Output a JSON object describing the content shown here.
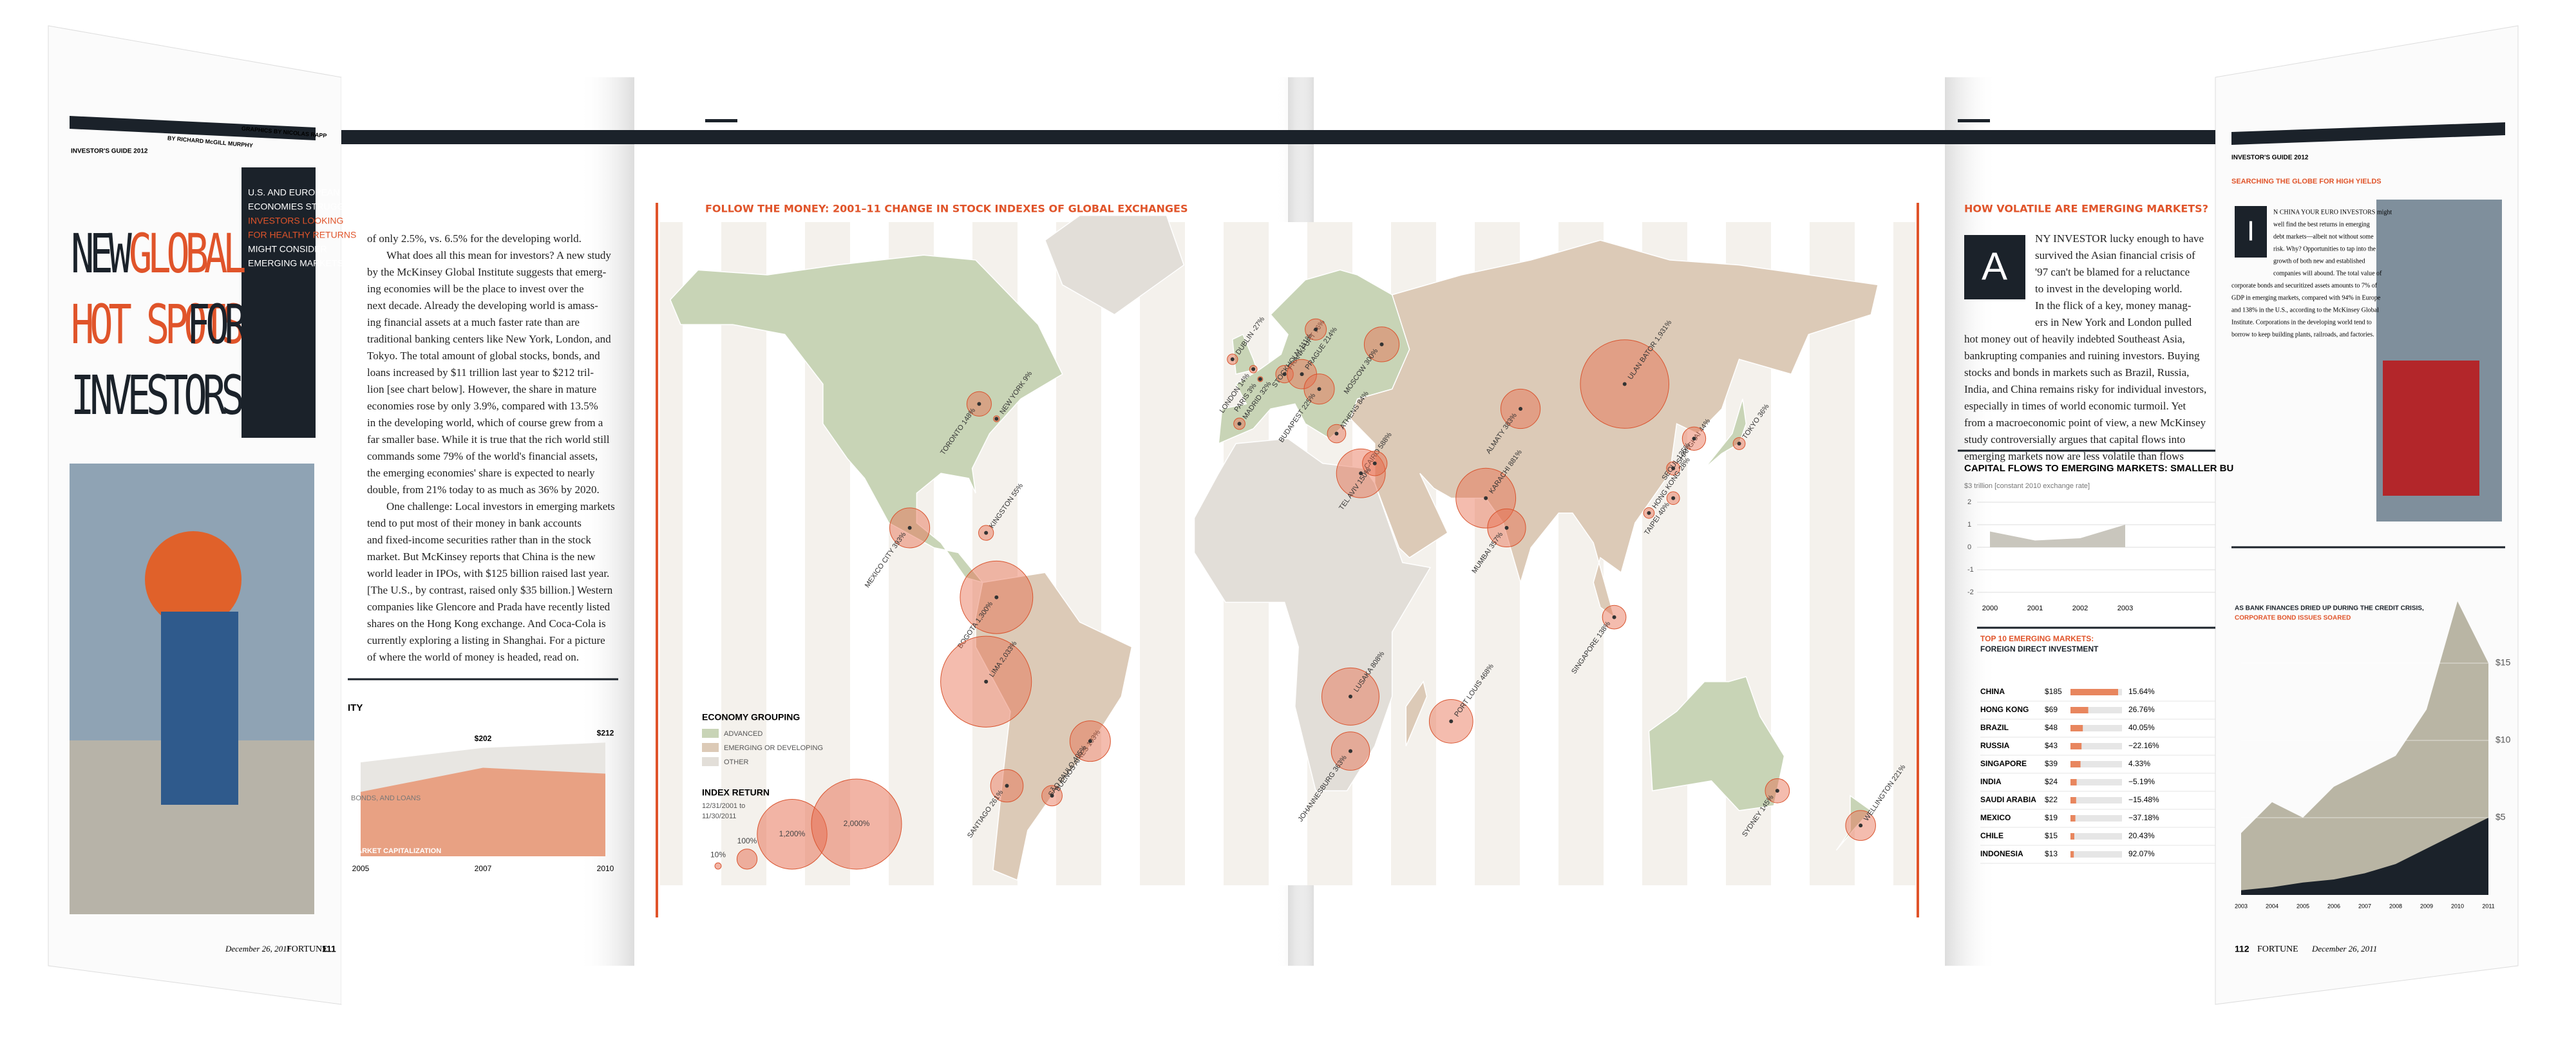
{
  "left_cover": {
    "section": "INVESTOR'S GUIDE 2012",
    "byline": "BY RICHARD McGILL MURPHY",
    "graphics": "GRAPHICS BY NICOLAS RAPP",
    "title_parts": [
      "NEW",
      "GLOBAL",
      "HOT SPOTS",
      "FOR",
      "INVESTORS"
    ],
    "deck": [
      "U.S. AND EUROPEAN",
      "ECONOMIES STRUGGLE.",
      "INVESTORS LOOKING",
      "FOR HEALTHY RETURNS",
      "MIGHT CONSIDER",
      "EMERGING MARKETS."
    ],
    "footer_date": "December 26, 2011",
    "footer_brand": "FORTUNE",
    "footer_page": "111"
  },
  "left_article": {
    "lines": [
      "of only 2.5%, vs. 6.5% for the developing world.",
      "What does all this mean for investors? A new study",
      "by the McKinsey Global Institute suggests that emerg-",
      "ing economies will be the place to invest over the",
      "next decade. Already the developing world is amass-",
      "ing financial assets at a much faster rate than are",
      "traditional banking centers like New York, London, and",
      "Tokyo. The total amount of global stocks, bonds, and",
      "loans increased by $11 trillion last year to $212 tril-",
      "lion [see chart below]. However, the share in mature",
      "economies rose by only 3.9%, compared with 13.5%",
      "in the developing world, which of course grew from a",
      "far smaller base. While it is true that the rich world still",
      "commands some 79% of the world's financial assets,",
      "the emerging economies' share is expected to nearly",
      "double, from 21% today to as much as 36% by 2020.",
      "One challenge: Local investors in emerging markets",
      "tend to put most of their money in bank accounts",
      "and fixed-income securities rather than in the stock",
      "market. But McKinsey reports that China is the new",
      "world leader in IPOs, with $125 billion raised last year.",
      "[The U.S., by contrast, raised only $35 billion.] Western",
      "companies like Glencore and Prada have recently listed",
      "shares on the Hong Kong exchange. And Coca-Cola is",
      "currently exploring a listing in Shanghai. For a picture",
      "of where the world of money is headed, read on."
    ]
  },
  "small_chart": {
    "title": "ITY",
    "band_label": "BONDS, AND LOANS",
    "area_label": "MARKET CAPITALIZATION",
    "x": [
      "2005",
      "2007",
      "2010"
    ],
    "total": [
      175,
      202,
      212
    ],
    "total_labels": [
      "",
      "$202",
      "$212"
    ],
    "market_cap": [
      120,
      165,
      154
    ],
    "ylim": [
      0,
      240
    ]
  },
  "map": {
    "title": "FOLLOW THE MONEY: 2001–11 CHANGE IN STOCK INDEXES OF GLOBAL EXCHANGES",
    "grouping_title": "ECONOMY GROUPING",
    "groups": [
      "ADVANCED",
      "EMERGING OR DEVELOPING",
      "OTHER"
    ],
    "index_title": "INDEX RETURN",
    "index_period": [
      "12/31/2001 to",
      "11/30/2011"
    ],
    "legend_bubbles": [
      {
        "value": 10,
        "label": "10%"
      },
      {
        "value": 100,
        "label": "100%"
      },
      {
        "value": 1200,
        "label": "1,200%"
      },
      {
        "value": 2000,
        "label": "2,000%"
      }
    ],
    "cities": [
      {
        "label": "TORONTO 148%",
        "value": 148
      },
      {
        "label": "NEW YORK 9%",
        "value": 9
      },
      {
        "label": "MEXICO CITY 393%",
        "value": 393
      },
      {
        "label": "KINGSTON 55%",
        "value": 55
      },
      {
        "label": "BOGOTA 1,300%",
        "value": 1300
      },
      {
        "label": "LIMA 2,033%",
        "value": 2033
      },
      {
        "label": "SANTIAGO 261%",
        "value": 261
      },
      {
        "label": "BUENOS AIRES 103%",
        "value": 103
      },
      {
        "label": "SÃO PAULO 405%",
        "value": 405
      },
      {
        "label": "DUBLIN -27%",
        "value": -27
      },
      {
        "label": "LONDON 14%",
        "value": 14
      },
      {
        "label": "MADRID 32%",
        "value": 32
      },
      {
        "label": "PARIS 3%",
        "value": 3
      },
      {
        "label": "FRANKFURT 76%",
        "value": 76
      },
      {
        "label": "STOCKHOLM 111%",
        "value": 111
      },
      {
        "label": "PRAGUE 214%",
        "value": 214
      },
      {
        "label": "BUDAPEST 225%",
        "value": 225
      },
      {
        "label": "ATHENS 84%",
        "value": 84
      },
      {
        "label": "MOSCOW 300%",
        "value": 300
      },
      {
        "label": "CAIRO 588%",
        "value": 588
      },
      {
        "label": "TEL AVIV 150%",
        "value": 150
      },
      {
        "label": "KARACHI 881%",
        "value": 881
      },
      {
        "label": "ALMATY 383%",
        "value": 383
      },
      {
        "label": "ULAN BATOR 1,931%",
        "value": 1931
      },
      {
        "label": "MUMBAI 357%",
        "value": 357
      },
      {
        "label": "SHANGHAI 44%",
        "value": 44
      },
      {
        "label": "SEOUL 135%",
        "value": 135
      },
      {
        "label": "TOKYO 36%",
        "value": 36
      },
      {
        "label": "TAIPEI 40%",
        "value": 40
      },
      {
        "label": "HONG KONG 28%",
        "value": 28
      },
      {
        "label": "SINGAPORE 138%",
        "value": 138
      },
      {
        "label": "LUSAKA 808%",
        "value": 808
      },
      {
        "label": "JOHANNESBURG 363%",
        "value": 363
      },
      {
        "label": "PORT LOUIS 468%",
        "value": 468
      },
      {
        "label": "SYDNEY 145%",
        "value": 145
      },
      {
        "label": "WELLINGTON 221%",
        "value": 221
      }
    ]
  },
  "right_article": {
    "title": "HOW VOLATILE ARE EMERGING MARKETS?",
    "drop_cap": "A",
    "lines": [
      "NY INVESTOR lucky enough to have",
      "survived the Asian financial crisis of",
      "'97 can't be blamed for a reluctance",
      "to invest in the developing world.",
      "In the flick of a key, money manag-",
      "ers in New York and London pulled",
      "hot money out of heavily indebted Southeast Asia,",
      "bankrupting companies and ruining investors. Buying",
      "stocks and bonds in markets such as Brazil, Russia,",
      "India, and China remains risky for individual investors,",
      "especially in times of world economic turmoil. Yet",
      "from a macroeconomic point of view, a new McKinsey",
      "study controversially argues that capital flows into",
      "emerging markets now are less volatile than flows"
    ]
  },
  "capital_flows": {
    "title": "CAPITAL FLOWS TO EMERGING MARKETS: SMALLER BU",
    "subtitle": "$3 trillion [constant 2010 exchange rate]",
    "x": [
      "2000",
      "2001",
      "2002",
      "2003"
    ],
    "values": [
      0.7,
      0.3,
      0.4,
      1.0
    ],
    "ylim": [
      -2,
      3
    ],
    "yticks": [
      2,
      1,
      0,
      -1,
      -2
    ]
  },
  "fdi_table": {
    "title": [
      "TOP 10 EMERGING MARKETS:",
      "FOREIGN DIRECT INVESTMENT"
    ],
    "rows": [
      [
        "CHINA",
        "$185",
        "15.64%"
      ],
      [
        "HONG KONG",
        "$69",
        "26.76%"
      ],
      [
        "BRAZIL",
        "$48",
        "40.05%"
      ],
      [
        "RUSSIA",
        "$43",
        "−22.16%"
      ],
      [
        "SINGAPORE",
        "$39",
        "4.33%"
      ],
      [
        "INDIA",
        "$24",
        "−5.19%"
      ],
      [
        "SAUDI ARABIA",
        "$22",
        "−15.48%"
      ],
      [
        "MEXICO",
        "$19",
        "−37.18%"
      ],
      [
        "CHILE",
        "$15",
        "20.43%"
      ],
      [
        "INDONESIA",
        "$13",
        "92.07%"
      ]
    ],
    "fdi_values": [
      185,
      69,
      48,
      43,
      39,
      24,
      22,
      19,
      15,
      13
    ]
  },
  "right_cover": {
    "section": "INVESTOR'S GUIDE 2012",
    "kicker": "SEARCHING THE GLOBE FOR HIGH YIELDS",
    "drop_cap": "I",
    "lines": [
      "N CHINA YOUR EURO INVESTORS might",
      "well find the best returns in emerging",
      "debt markets—albeit not without some",
      "risk. Why? Opportunities to tap into the",
      "growth of both new and established",
      "companies will abound. The total value of",
      "corporate bonds and securitized assets amounts to 7% of",
      "GDP in emerging markets, compared with 94% in Europe",
      "and 138% in the U.S., according to the McKinsey Global",
      "Institute. Corporations in the developing world tend to",
      "borrow to keep building plants, railroads, and factories."
    ],
    "chart_title": [
      "AS BANK FINANCES DRIED UP DURING THE CREDIT CRISIS,",
      "CORPORATE BOND ISSUES SOARED"
    ],
    "x": [
      "2003",
      "2004",
      "2005",
      "2006",
      "2007",
      "2008",
      "2009",
      "2010",
      "2011"
    ],
    "bank": [
      4,
      6,
      5,
      7,
      8,
      9,
      12,
      19,
      15
    ],
    "bonds": [
      0.3,
      0.5,
      0.8,
      1.0,
      1.4,
      2.0,
      3.0,
      4.0,
      5.0
    ],
    "ylim": [
      0,
      20
    ],
    "yticks": [
      {
        "value": 5,
        "label": "$5"
      },
      {
        "value": 10,
        "label": "$10"
      },
      {
        "value": 15,
        "label": "$15"
      }
    ],
    "footer_page": "112",
    "footer_brand": "FORTUNE",
    "footer_date": "December 26, 2011"
  }
}
